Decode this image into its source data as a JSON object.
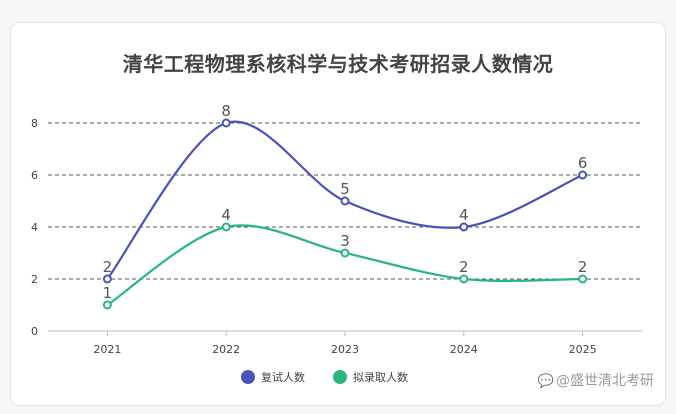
{
  "chart_data": {
    "type": "line",
    "title": "清华工程物理系核科学与技术考研招录人数情况",
    "categories": [
      "2021",
      "2022",
      "2023",
      "2024",
      "2025"
    ],
    "series": [
      {
        "name": "复试人数",
        "values": [
          2,
          8,
          5,
          4,
          6
        ],
        "color": "#4a54b8"
      },
      {
        "name": "拟录取人数",
        "values": [
          1,
          4,
          3,
          2,
          2
        ],
        "color": "#2bb57e"
      }
    ],
    "yticks": [
      0,
      2,
      4,
      6,
      8
    ],
    "ylim": [
      0,
      8
    ],
    "smooth": true,
    "grid": "dashed-horizontal",
    "legend": "bottom-center",
    "data_labels": true
  },
  "watermark": {
    "text": "@盛世清北考研",
    "icon": "chat-bubble-icon"
  }
}
